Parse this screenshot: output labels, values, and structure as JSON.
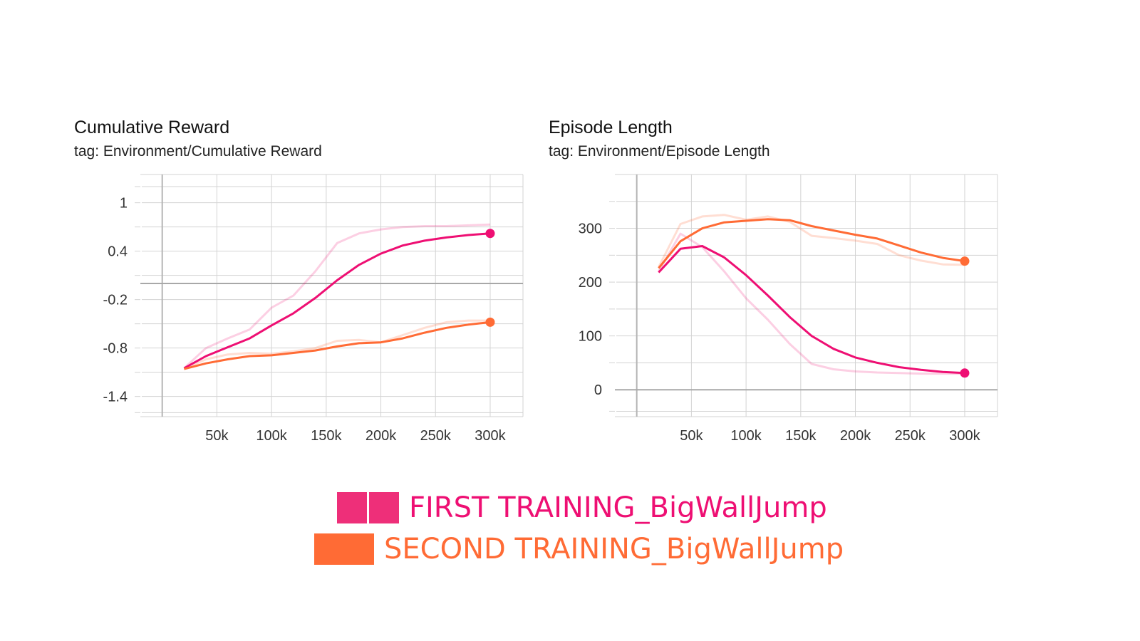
{
  "colors": {
    "first": "#ee0f73",
    "first_swatch": "#ee2f79",
    "second": "#ff6b35",
    "grid": "#d3d3d3",
    "axis": "#b5b5b5",
    "zero_line": "#a8a8a8"
  },
  "legend": {
    "first_label": "FIRST TRAINING_BigWallJump",
    "second_label": "SECOND TRAINING_BigWallJump"
  },
  "chart_data": [
    {
      "type": "line",
      "title": "Cumulative Reward",
      "subtitle": "tag: Environment/Cumulative Reward",
      "xlabel": "",
      "ylabel": "",
      "xlim": [
        -20000,
        330000
      ],
      "ylim": [
        -1.65,
        1.35
      ],
      "x_ticks": [
        50000,
        100000,
        150000,
        200000,
        250000,
        300000
      ],
      "x_tick_labels": [
        "50k",
        "100k",
        "150k",
        "200k",
        "250k",
        "300k"
      ],
      "y_ticks": [
        1,
        0.4,
        -0.2,
        -0.8,
        -1.4
      ],
      "y_tick_labels": [
        "1",
        "0.4",
        "-0.2",
        "-0.8",
        "-1.4"
      ],
      "x_grid": [
        0,
        50000,
        100000,
        150000,
        200000,
        250000,
        300000
      ],
      "y_grid": [
        1.2,
        1,
        0.7,
        0.4,
        0.1,
        -0.2,
        -0.5,
        -0.8,
        -1.1,
        -1.4,
        -1.6
      ],
      "zero_line": 0,
      "grid": true,
      "x": [
        20000,
        40000,
        60000,
        80000,
        100000,
        120000,
        140000,
        160000,
        180000,
        200000,
        220000,
        240000,
        260000,
        280000,
        300000
      ],
      "series": [
        {
          "name": "FIRST TRAINING_BigWallJump",
          "values": [
            -1.05,
            -0.9,
            -0.79,
            -0.68,
            -0.52,
            -0.37,
            -0.18,
            0.04,
            0.23,
            0.37,
            0.47,
            0.53,
            0.57,
            0.6,
            0.62
          ],
          "raw": [
            -1.05,
            -0.8,
            -0.68,
            -0.57,
            -0.3,
            -0.15,
            0.15,
            0.5,
            0.62,
            0.67,
            0.7,
            0.71,
            0.71,
            0.72,
            0.73
          ],
          "marker": "end"
        },
        {
          "name": "SECOND TRAINING_BigWallJump",
          "values": [
            -1.06,
            -0.99,
            -0.94,
            -0.9,
            -0.89,
            -0.86,
            -0.83,
            -0.78,
            -0.74,
            -0.73,
            -0.68,
            -0.61,
            -0.55,
            -0.51,
            -0.48
          ],
          "raw": [
            -1.06,
            -0.94,
            -0.88,
            -0.86,
            -0.87,
            -0.84,
            -0.8,
            -0.71,
            -0.7,
            -0.73,
            -0.64,
            -0.55,
            -0.48,
            -0.46,
            -0.46
          ],
          "marker": "end"
        }
      ]
    },
    {
      "type": "line",
      "title": "Episode Length",
      "subtitle": "tag: Environment/Episode Length",
      "xlabel": "",
      "ylabel": "",
      "xlim": [
        -20000,
        330000
      ],
      "ylim": [
        -50,
        400
      ],
      "x_ticks": [
        50000,
        100000,
        150000,
        200000,
        250000,
        300000
      ],
      "x_tick_labels": [
        "50k",
        "100k",
        "150k",
        "200k",
        "250k",
        "300k"
      ],
      "y_ticks": [
        300,
        200,
        100,
        0
      ],
      "y_tick_labels": [
        "300",
        "200",
        "100",
        "0"
      ],
      "x_grid": [
        0,
        50000,
        100000,
        150000,
        200000,
        250000,
        300000
      ],
      "y_grid": [
        350,
        300,
        250,
        200,
        150,
        100,
        50,
        -40
      ],
      "zero_line": 0,
      "grid": true,
      "x": [
        20000,
        40000,
        60000,
        80000,
        100000,
        120000,
        140000,
        160000,
        180000,
        200000,
        220000,
        240000,
        260000,
        280000,
        300000
      ],
      "series": [
        {
          "name": "FIRST TRAINING_BigWallJump",
          "values": [
            218,
            262,
            267,
            246,
            213,
            175,
            135,
            100,
            76,
            60,
            50,
            42,
            37,
            33,
            31
          ],
          "raw": [
            220,
            290,
            265,
            220,
            170,
            130,
            85,
            48,
            38,
            34,
            32,
            31,
            30,
            30,
            30
          ],
          "marker": "end"
        },
        {
          "name": "SECOND TRAINING_BigWallJump",
          "values": [
            226,
            276,
            300,
            311,
            314,
            317,
            315,
            304,
            296,
            288,
            281,
            268,
            255,
            245,
            239
          ],
          "raw": [
            228,
            308,
            322,
            325,
            316,
            322,
            312,
            286,
            282,
            277,
            271,
            250,
            240,
            233,
            232
          ],
          "marker": "end"
        }
      ]
    }
  ]
}
